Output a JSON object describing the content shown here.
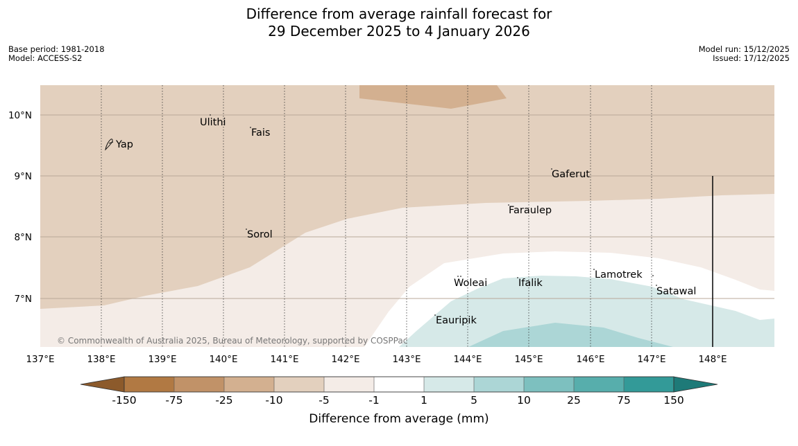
{
  "title": {
    "line1": "Difference from average rainfall forecast for",
    "line2": "29 December 2025 to 4 January 2026"
  },
  "meta_left": {
    "base_period": "Base period: 1981-2018",
    "model": "Model: ACCESS-S2"
  },
  "meta_right": {
    "model_run": "Model run: 15/12/2025",
    "issued": "Issued: 17/12/2025"
  },
  "map": {
    "credit": "© Commonwealth of Australia 2025, Bureau of Meteorology, supported by COSPPac",
    "lat_labels": [
      "10°N",
      "9°N",
      "8°N",
      "7°N"
    ],
    "lon_labels": [
      "137°E",
      "138°E",
      "139°E",
      "140°E",
      "141°E",
      "142°E",
      "143°E",
      "144°E",
      "145°E",
      "146°E",
      "147°E",
      "148°E"
    ],
    "places": [
      "Ulithi",
      "Fais",
      "Yap",
      "Gaferut",
      "Faraulep",
      "Sorol",
      "Lamotrek",
      "Woleai",
      "Ifalik",
      "Satawal",
      "Eauripik"
    ]
  },
  "colorbar": {
    "ticks": [
      "-150",
      "-75",
      "-25",
      "-10",
      "-5",
      "-1",
      "1",
      "5",
      "10",
      "25",
      "75",
      "150"
    ],
    "colors": [
      "#8c5a2b",
      "#b17943",
      "#c19268",
      "#d3b090",
      "#e3d0be",
      "#f4ece7",
      "#ffffff",
      "#d6e9e8",
      "#acd6d6",
      "#7dc0bf",
      "#57aeac",
      "#339a98",
      "#1e7a78"
    ],
    "label": "Difference from average (mm)"
  }
}
